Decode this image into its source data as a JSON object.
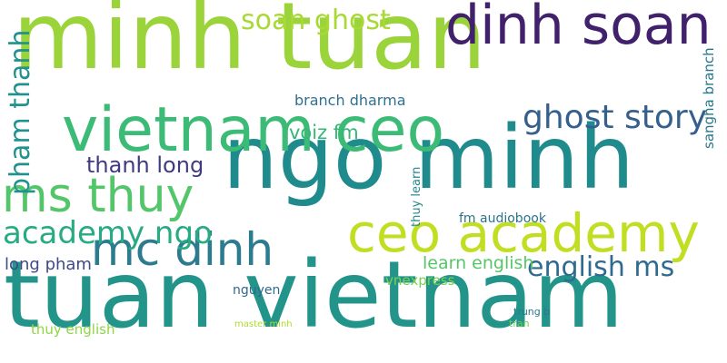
{
  "words": [
    {
      "text": "minh tuan",
      "color": "#9bd43a"
    },
    {
      "text": "tuan vietnam",
      "color": "#23948a"
    },
    {
      "text": "ngo minh",
      "color": "#1f8b8c"
    },
    {
      "text": "vietnam ceo",
      "color": "#3bbb75"
    },
    {
      "text": "dinh soan",
      "color": "#42216c"
    },
    {
      "text": "ceo academy",
      "color": "#c2de22"
    },
    {
      "text": "ms thuy",
      "color": "#54c66a"
    },
    {
      "text": "mc dinh",
      "color": "#2c7b8e"
    },
    {
      "text": "academy ngo",
      "color": "#27ab83"
    },
    {
      "text": "ghost story",
      "color": "#355f8d"
    },
    {
      "text": "pham thanh",
      "color": "#20918c"
    },
    {
      "text": "soan ghost",
      "color": "#a8d934"
    },
    {
      "text": "english ms",
      "color": "#2f6b8e"
    },
    {
      "text": "thanh long",
      "color": "#3f3b83"
    },
    {
      "text": "long pham",
      "color": "#3e4a89"
    },
    {
      "text": "learn english",
      "color": "#55c667"
    },
    {
      "text": "voiz fm",
      "color": "#35b779"
    },
    {
      "text": "branch dharma",
      "color": "#2d718e"
    },
    {
      "text": "sangha branch",
      "color": "#2a788e"
    },
    {
      "text": "vnexpress",
      "color": "#7ad151"
    },
    {
      "text": "thuy english",
      "color": "#8ed645"
    },
    {
      "text": "fm audiobook",
      "color": "#2c738e"
    },
    {
      "text": "nguyen",
      "color": "#31688e"
    },
    {
      "text": "master minh",
      "color": "#addc30"
    },
    {
      "text": "thuy learn",
      "color": "#24868e"
    },
    {
      "text": "trung b",
      "color": "#2a778e"
    },
    {
      "text": "tran",
      "color": "#6ccd5a"
    }
  ]
}
